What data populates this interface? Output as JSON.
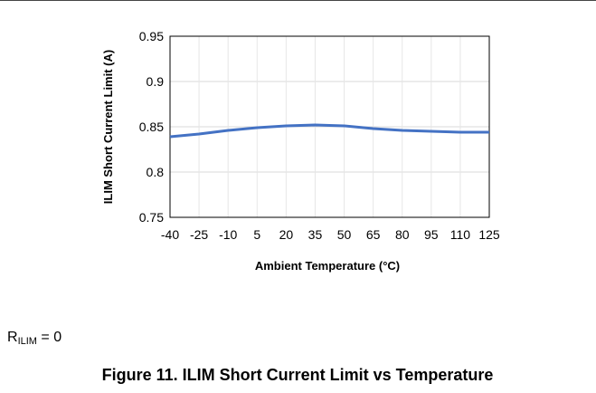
{
  "chart_data": {
    "type": "line",
    "x_label": "Ambient Temperature (°C)",
    "y_label": "ILIM Short Current Limit (A)",
    "x": [
      -40,
      -25,
      -10,
      5,
      20,
      35,
      50,
      65,
      80,
      95,
      110,
      125
    ],
    "series": [
      {
        "name": "ILIM",
        "color": "#4472c4",
        "values": [
          0.839,
          0.842,
          0.846,
          0.849,
          0.851,
          0.852,
          0.851,
          0.848,
          0.846,
          0.845,
          0.844,
          0.844
        ]
      }
    ],
    "xlim": [
      -40,
      125
    ],
    "xticks": [
      -40,
      -25,
      -10,
      5,
      20,
      35,
      50,
      65,
      80,
      95,
      110,
      125
    ],
    "ylim": [
      0.75,
      0.95
    ],
    "yticks": [
      0.75,
      0.8,
      0.85,
      0.9,
      0.95
    ],
    "grid": true,
    "legend": false
  },
  "note": {
    "symbol": "R",
    "subscript": "ILIM",
    "rest": " = 0"
  },
  "caption": "Figure 11. ILIM Short Current Limit vs Temperature"
}
